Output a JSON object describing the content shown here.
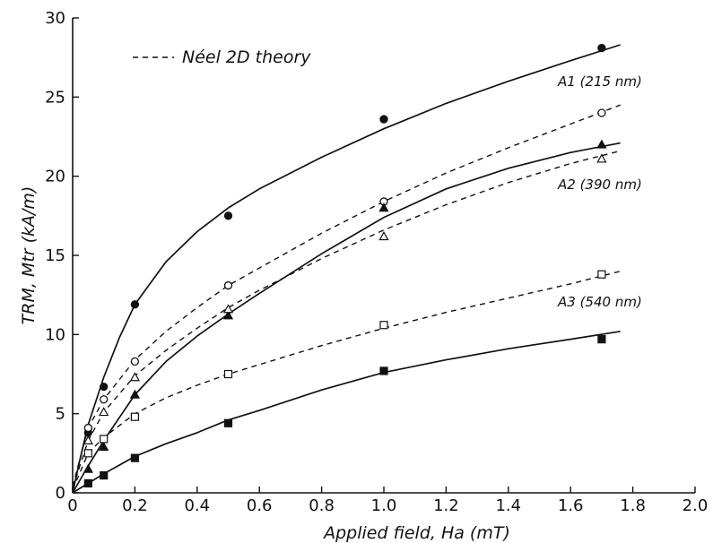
{
  "chart_data": {
    "type": "scatter",
    "xlabel": "Applied field, Ha (mT)",
    "ylabel": "TRM, Mtr (kA/m)",
    "xlim": [
      0,
      2.0
    ],
    "ylim": [
      0,
      30
    ],
    "xticks": [
      "0",
      "0.2",
      "0.4",
      "0.6",
      "0.8",
      "1.0",
      "1.2",
      "1.4",
      "1.6",
      "1.8",
      "2.0"
    ],
    "yticks": [
      "0",
      "5",
      "10",
      "15",
      "20",
      "25",
      "30"
    ],
    "grid": false,
    "legend": {
      "label": "Néel 2D theory",
      "style": "dashed",
      "position": "top-left"
    },
    "annotations": [
      "A1 (215 nm)",
      "A2 (390 nm)",
      "A3 (540 nm)"
    ],
    "series": [
      {
        "kind": "measured",
        "marker": "filled-circle",
        "line": "solid",
        "points": [
          [
            0.05,
            3.8
          ],
          [
            0.1,
            6.7
          ],
          [
            0.2,
            11.9
          ],
          [
            0.5,
            17.5
          ],
          [
            1.0,
            23.6
          ],
          [
            1.7,
            28.1
          ]
        ],
        "curve": [
          [
            0,
            0
          ],
          [
            0.02,
            1.8
          ],
          [
            0.05,
            4.3
          ],
          [
            0.1,
            7.3
          ],
          [
            0.15,
            9.8
          ],
          [
            0.2,
            11.9
          ],
          [
            0.3,
            14.6
          ],
          [
            0.4,
            16.5
          ],
          [
            0.5,
            18.0
          ],
          [
            0.6,
            19.2
          ],
          [
            0.8,
            21.2
          ],
          [
            1.0,
            23.0
          ],
          [
            1.2,
            24.6
          ],
          [
            1.4,
            26.0
          ],
          [
            1.6,
            27.3
          ],
          [
            1.76,
            28.3
          ]
        ]
      },
      {
        "kind": "theory",
        "marker": "open-circle",
        "line": "dashed",
        "points": [
          [
            0.05,
            4.1
          ],
          [
            0.1,
            5.9
          ],
          [
            0.2,
            8.3
          ],
          [
            0.5,
            13.1
          ],
          [
            1.0,
            18.4
          ],
          [
            1.7,
            24.0
          ]
        ],
        "curve": [
          [
            0,
            0.4
          ],
          [
            0.05,
            4.1
          ],
          [
            0.1,
            5.9
          ],
          [
            0.2,
            8.4
          ],
          [
            0.3,
            10.2
          ],
          [
            0.4,
            11.7
          ],
          [
            0.5,
            13.1
          ],
          [
            0.6,
            14.2
          ],
          [
            0.8,
            16.4
          ],
          [
            1.0,
            18.4
          ],
          [
            1.2,
            20.2
          ],
          [
            1.4,
            21.8
          ],
          [
            1.6,
            23.3
          ],
          [
            1.76,
            24.5
          ]
        ]
      },
      {
        "kind": "measured",
        "marker": "filled-triangle",
        "line": "solid",
        "points": [
          [
            0.05,
            1.5
          ],
          [
            0.1,
            2.9
          ],
          [
            0.2,
            6.2
          ],
          [
            0.5,
            11.2
          ],
          [
            1.0,
            18.0
          ],
          [
            1.7,
            22.0
          ]
        ],
        "curve": [
          [
            0,
            0
          ],
          [
            0.05,
            1.7
          ],
          [
            0.1,
            3.3
          ],
          [
            0.2,
            6.2
          ],
          [
            0.3,
            8.3
          ],
          [
            0.4,
            9.9
          ],
          [
            0.5,
            11.3
          ],
          [
            0.6,
            12.6
          ],
          [
            0.8,
            15.1
          ],
          [
            1.0,
            17.4
          ],
          [
            1.2,
            19.2
          ],
          [
            1.4,
            20.5
          ],
          [
            1.6,
            21.5
          ],
          [
            1.76,
            22.1
          ]
        ]
      },
      {
        "kind": "theory",
        "marker": "open-triangle",
        "line": "dashed",
        "points": [
          [
            0.05,
            3.3
          ],
          [
            0.1,
            5.1
          ],
          [
            0.2,
            7.3
          ],
          [
            0.5,
            11.6
          ],
          [
            1.0,
            16.2
          ],
          [
            1.7,
            21.1
          ]
        ],
        "curve": [
          [
            0,
            0.3
          ],
          [
            0.05,
            3.3
          ],
          [
            0.1,
            5.1
          ],
          [
            0.2,
            7.4
          ],
          [
            0.3,
            9.0
          ],
          [
            0.4,
            10.4
          ],
          [
            0.5,
            11.7
          ],
          [
            0.6,
            12.8
          ],
          [
            0.8,
            14.8
          ],
          [
            1.0,
            16.6
          ],
          [
            1.2,
            18.2
          ],
          [
            1.4,
            19.6
          ],
          [
            1.6,
            20.8
          ],
          [
            1.76,
            21.6
          ]
        ]
      },
      {
        "kind": "theory",
        "marker": "open-square",
        "line": "dashed",
        "points": [
          [
            0.05,
            2.5
          ],
          [
            0.1,
            3.4
          ],
          [
            0.2,
            4.8
          ],
          [
            0.5,
            7.5
          ],
          [
            1.0,
            10.6
          ],
          [
            1.7,
            13.8
          ]
        ],
        "curve": [
          [
            0,
            0.2
          ],
          [
            0.05,
            2.5
          ],
          [
            0.1,
            3.5
          ],
          [
            0.2,
            5.0
          ],
          [
            0.3,
            6.0
          ],
          [
            0.4,
            6.8
          ],
          [
            0.5,
            7.5
          ],
          [
            0.6,
            8.1
          ],
          [
            0.8,
            9.3
          ],
          [
            1.0,
            10.4
          ],
          [
            1.2,
            11.4
          ],
          [
            1.4,
            12.3
          ],
          [
            1.6,
            13.2
          ],
          [
            1.76,
            14.0
          ]
        ]
      },
      {
        "kind": "measured",
        "marker": "filled-square",
        "line": "solid",
        "points": [
          [
            0.05,
            0.6
          ],
          [
            0.1,
            1.1
          ],
          [
            0.2,
            2.2
          ],
          [
            0.5,
            4.4
          ],
          [
            1.0,
            7.7
          ],
          [
            1.7,
            9.7
          ]
        ],
        "curve": [
          [
            0,
            0
          ],
          [
            0.05,
            0.6
          ],
          [
            0.1,
            1.2
          ],
          [
            0.2,
            2.3
          ],
          [
            0.3,
            3.1
          ],
          [
            0.4,
            3.8
          ],
          [
            0.5,
            4.6
          ],
          [
            0.6,
            5.2
          ],
          [
            0.8,
            6.5
          ],
          [
            1.0,
            7.6
          ],
          [
            1.2,
            8.4
          ],
          [
            1.4,
            9.1
          ],
          [
            1.6,
            9.7
          ],
          [
            1.76,
            10.2
          ]
        ]
      }
    ]
  }
}
